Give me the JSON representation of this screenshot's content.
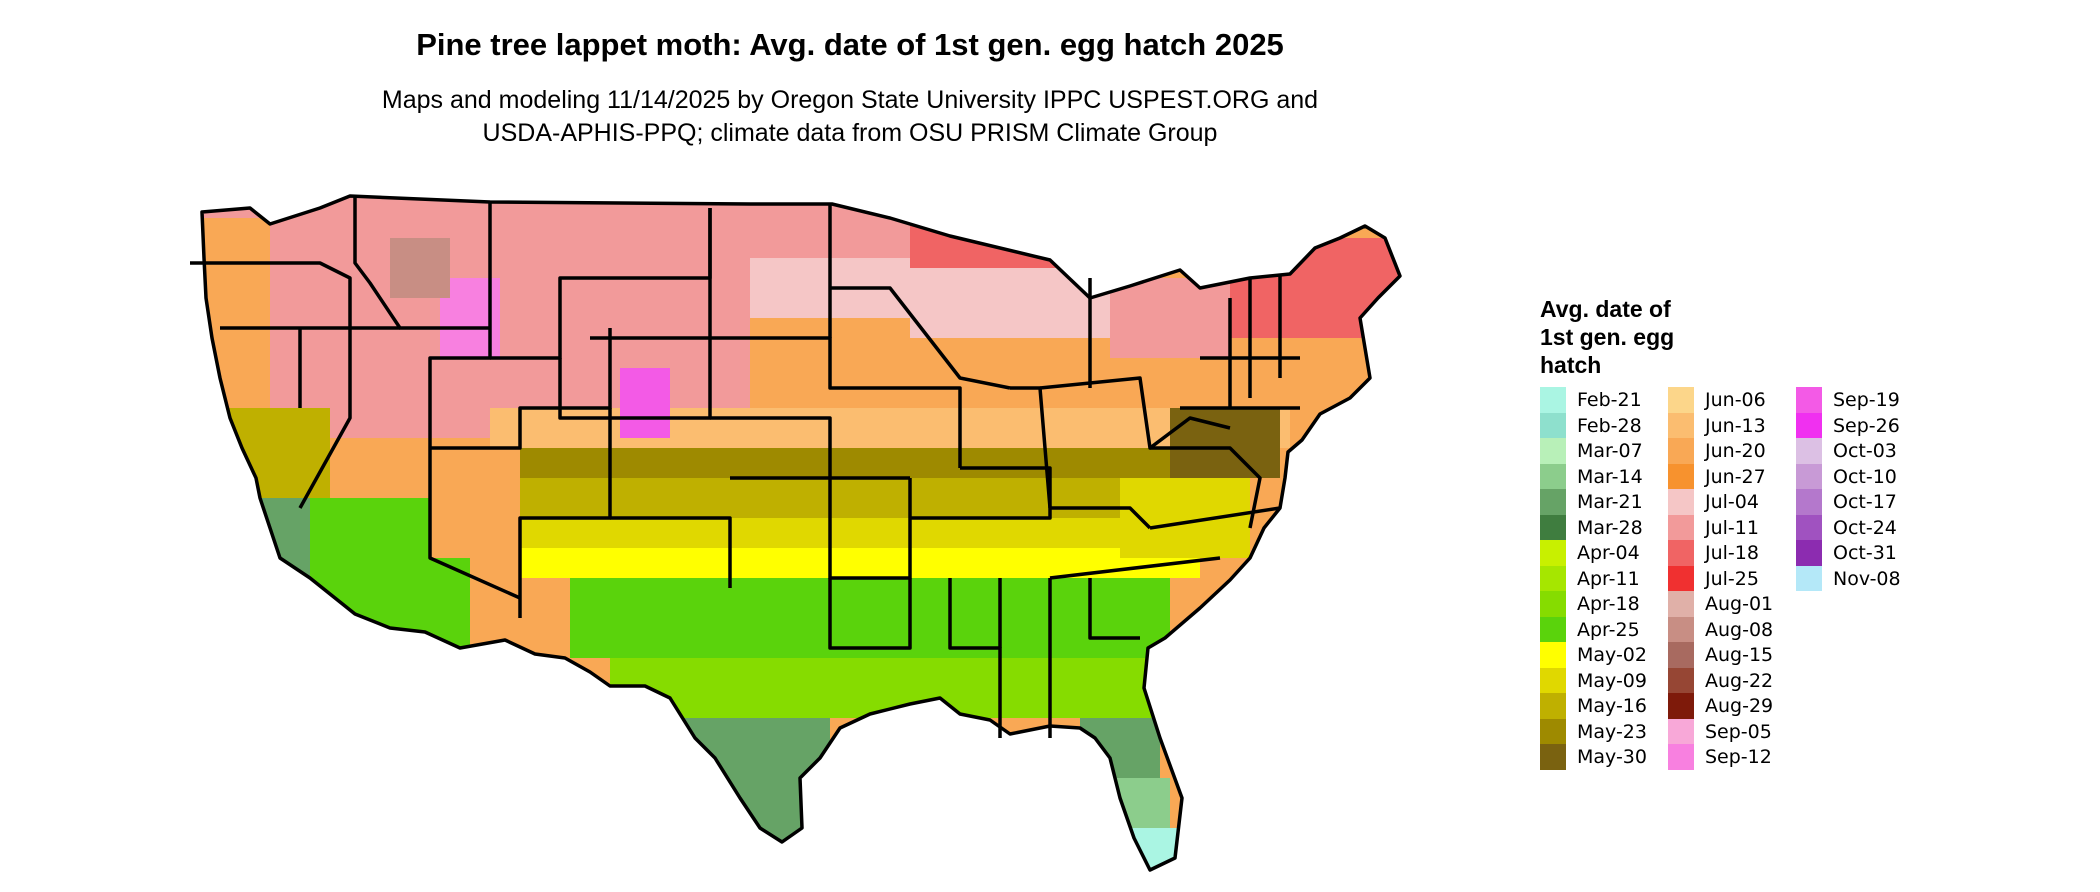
{
  "title": "Pine tree lappet moth: Avg. date of 1st gen. egg hatch 2025",
  "subtitle_lines": [
    "Maps and modeling 11/14/2025 by Oregon State University IPPC USPEST.ORG and",
    "USDA-APHIS-PPQ; climate data from OSU PRISM Climate Group"
  ],
  "legend": {
    "title_lines": [
      "Avg. date of",
      "1st gen. egg",
      "hatch"
    ],
    "items": [
      {
        "label": "Feb-21",
        "color": "#aaf5e3"
      },
      {
        "label": "Feb-28",
        "color": "#8ee0cd"
      },
      {
        "label": "Mar-07",
        "color": "#b8f0b8"
      },
      {
        "label": "Mar-14",
        "color": "#8ccd8c"
      },
      {
        "label": "Mar-21",
        "color": "#66a366"
      },
      {
        "label": "Mar-28",
        "color": "#3f7d3f"
      },
      {
        "label": "Apr-04",
        "color": "#c8f000"
      },
      {
        "label": "Apr-11",
        "color": "#a6e600"
      },
      {
        "label": "Apr-18",
        "color": "#86dc00"
      },
      {
        "label": "Apr-25",
        "color": "#5ad30c"
      },
      {
        "label": "May-02",
        "color": "#ffff00"
      },
      {
        "label": "May-09",
        "color": "#e0d800"
      },
      {
        "label": "May-16",
        "color": "#bfb000"
      },
      {
        "label": "May-23",
        "color": "#9e8a00"
      },
      {
        "label": "May-30",
        "color": "#7a6210"
      },
      {
        "label": "Jun-06",
        "color": "#fcd68a"
      },
      {
        "label": "Jun-13",
        "color": "#fbbd70"
      },
      {
        "label": "Jun-20",
        "color": "#f9a855"
      },
      {
        "label": "Jun-27",
        "color": "#f7922e"
      },
      {
        "label": "Jul-04",
        "color": "#f5c6c6"
      },
      {
        "label": "Jul-11",
        "color": "#f29a9a"
      },
      {
        "label": "Jul-18",
        "color": "#f06464"
      },
      {
        "label": "Jul-25",
        "color": "#f03030"
      },
      {
        "label": "Aug-01",
        "color": "#e0b0a8"
      },
      {
        "label": "Aug-08",
        "color": "#c88e84"
      },
      {
        "label": "Aug-15",
        "color": "#a86a60"
      },
      {
        "label": "Aug-22",
        "color": "#964634"
      },
      {
        "label": "Aug-29",
        "color": "#7e1a0a"
      },
      {
        "label": "Sep-05",
        "color": "#f8a8d8"
      },
      {
        "label": "Sep-12",
        "color": "#f880e0"
      },
      {
        "label": "Sep-19",
        "color": "#f35ae6"
      },
      {
        "label": "Sep-26",
        "color": "#f030f0"
      },
      {
        "label": "Oct-03",
        "color": "#dcc0e4"
      },
      {
        "label": "Oct-10",
        "color": "#c89ad6"
      },
      {
        "label": "Oct-17",
        "color": "#b478cc"
      },
      {
        "label": "Oct-24",
        "color": "#a052c0"
      },
      {
        "label": "Oct-31",
        "color": "#8c2cb0"
      },
      {
        "label": "Nov-08",
        "color": "#b4e8f8"
      }
    ]
  }
}
